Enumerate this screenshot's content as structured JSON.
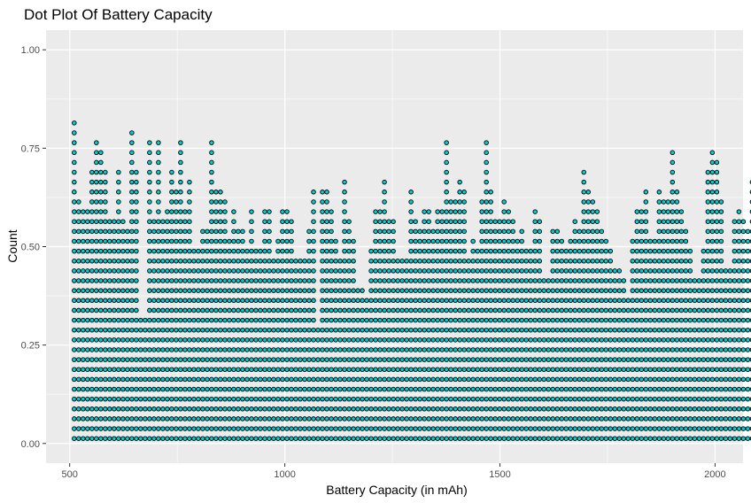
{
  "chart_data": {
    "type": "dotplot",
    "title": "Dot Plot Of Battery Capacity",
    "xlabel": "Battery Capacity (in mAh)",
    "ylabel": "Count",
    "xlim": [
      445,
      2065
    ],
    "ylim": [
      -0.05,
      1.05
    ],
    "x_ticks": [
      500,
      1000,
      1500,
      2000
    ],
    "x_tick_labels": [
      "500",
      "1000",
      "1500",
      "2000"
    ],
    "y_ticks": [
      0.0,
      0.25,
      0.5,
      0.75,
      1.0
    ],
    "y_tick_labels": [
      "0.00",
      "0.25",
      "0.50",
      "0.75",
      "1.00"
    ],
    "grid": true,
    "legend": "none",
    "dot_fill": "#00CED1",
    "dot_stroke": "#000000",
    "panel_background": "#EBEBEB",
    "grid_color": "#FFFFFF",
    "bin_width": 10.3,
    "x_start": 510.5,
    "dot_step": 0.02505,
    "column_counts": [
      33,
      25,
      24,
      24,
      28,
      31,
      30,
      28,
      23,
      23,
      28,
      23,
      22,
      32,
      28,
      13,
      13,
      31,
      23,
      31,
      23,
      24,
      28,
      26,
      31,
      24,
      27,
      20,
      20,
      22,
      22,
      31,
      26,
      26,
      25,
      21,
      24,
      22,
      22,
      20,
      24,
      20,
      20,
      24,
      24,
      19,
      21,
      24,
      24,
      23,
      19,
      19,
      19,
      22,
      26,
      12,
      26,
      26,
      24,
      21,
      19,
      27,
      23,
      21,
      16,
      16,
      15,
      20,
      24,
      24,
      27,
      23,
      23,
      19,
      19,
      19,
      26,
      23,
      22,
      24,
      24,
      22,
      24,
      24,
      31,
      25,
      25,
      27,
      26,
      19,
      21,
      20,
      25,
      31,
      26,
      23,
      23,
      25,
      24,
      23,
      21,
      22,
      20,
      20,
      24,
      23,
      17,
      17,
      22,
      22,
      21,
      20,
      21,
      23,
      22,
      28,
      26,
      25,
      24,
      22,
      21,
      20,
      18,
      18,
      17,
      15,
      21,
      24,
      24,
      26,
      21,
      21,
      26,
      25,
      25,
      30,
      26,
      24,
      22,
      20,
      17,
      17,
      20,
      28,
      30,
      29,
      25,
      18,
      18,
      23,
      24,
      23,
      22,
      27,
      29,
      31,
      23,
      23,
      20,
      19,
      22,
      23,
      25,
      26,
      27,
      22,
      23,
      22,
      22,
      21,
      17,
      19,
      20,
      19,
      28,
      29,
      26,
      24,
      21,
      21,
      25,
      25,
      22,
      25,
      24,
      22,
      20,
      16,
      19,
      20,
      23,
      27,
      24,
      21,
      20,
      21,
      24,
      26,
      26,
      23,
      19,
      19,
      18,
      17,
      21,
      26,
      27,
      24,
      22,
      24,
      20,
      19,
      20,
      23,
      21,
      16,
      21,
      21,
      24,
      24,
      24,
      28,
      26,
      24,
      21,
      21,
      25,
      22,
      22,
      25,
      26,
      24,
      22,
      22,
      30,
      25,
      26,
      25,
      24,
      21,
      20,
      20,
      21,
      20,
      21,
      24,
      24,
      25,
      24,
      20,
      19,
      19,
      18,
      18,
      21,
      22,
      23,
      23,
      22,
      23,
      21,
      18,
      16,
      17,
      22,
      23,
      22,
      25,
      24,
      26,
      23,
      20,
      19,
      19,
      17,
      16,
      18,
      21,
      21,
      23,
      24,
      24,
      21,
      22,
      23,
      20,
      19,
      18,
      15,
      16,
      18,
      21,
      21,
      22,
      23,
      21,
      22,
      26,
      24,
      20,
      19,
      20,
      22,
      23,
      21,
      26,
      25,
      23,
      21,
      21,
      23,
      24,
      28,
      25,
      22,
      21,
      20,
      20,
      24,
      26,
      24,
      22,
      22,
      23,
      24,
      23,
      22,
      24,
      24,
      21,
      21,
      21,
      24,
      26,
      24,
      22,
      22,
      21,
      24,
      25,
      28,
      22,
      22,
      24,
      25,
      24,
      28,
      28,
      26,
      27,
      26,
      21,
      21,
      18,
      17,
      16,
      21,
      25,
      26,
      25,
      23,
      21,
      20,
      19,
      22,
      26,
      24,
      24,
      22,
      22,
      23,
      24,
      21,
      25,
      28,
      23,
      24,
      20,
      21,
      24,
      23,
      23,
      22,
      20,
      20,
      23,
      24,
      23,
      21,
      25,
      23,
      20,
      18,
      20,
      22,
      22,
      23,
      20,
      20,
      23,
      26,
      24,
      22,
      20,
      18,
      16,
      16,
      17,
      21,
      22,
      21,
      20,
      26,
      25,
      25,
      22,
      22,
      20,
      18,
      15,
      15,
      16,
      22,
      22,
      24,
      22,
      20,
      20,
      20,
      21,
      22,
      22,
      21,
      20,
      20,
      21,
      22,
      22,
      23,
      24,
      25,
      23,
      23,
      23,
      21,
      21,
      20,
      18,
      16,
      17,
      21,
      22,
      20,
      20,
      20,
      20,
      20,
      21,
      23,
      25,
      24,
      22,
      22,
      24,
      28,
      30,
      26,
      26,
      23,
      21,
      22,
      22,
      21,
      21
    ]
  }
}
